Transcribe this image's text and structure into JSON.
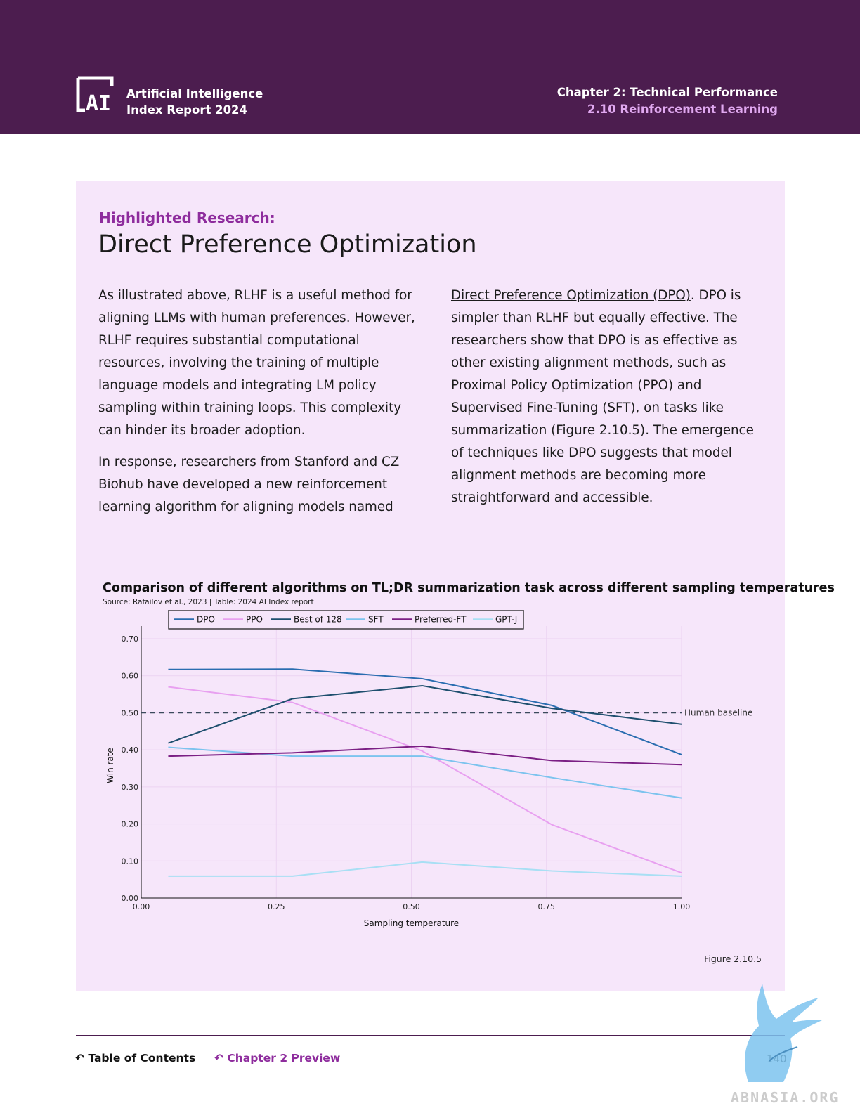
{
  "header": {
    "brand_line1": "Artificial Intelligence",
    "brand_line2": "Index Report 2024",
    "chapter": "Chapter 2: Technical Performance",
    "section": "2.10 Reinforcement Learning",
    "logo_text": "AI"
  },
  "article": {
    "label": "Highlighted Research:",
    "title": "Direct Preference Optimization",
    "col1_p1": "As illustrated above, RLHF is a useful method for aligning LLMs with human preferences. However, RLHF requires substantial computational resources, involving the training of multiple language models and integrating LM policy sampling within training loops. This complexity can hinder its broader adoption.",
    "col1_p2": "In response, researchers from Stanford and CZ Biohub have developed a new reinforcement learning algorithm for aligning models named",
    "col2_link": "Direct Preference Optimization (DPO)",
    "col2_text": ". DPO is simpler than RLHF but equally effective. The researchers show that DPO is as effective as other existing alignment methods, such as Proximal Policy Optimization (PPO) and Supervised Fine-Tuning (SFT), on tasks like summarization (Figure 2.10.5). The emergence of techniques like DPO suggests that model alignment methods are becoming more straightforward and accessible."
  },
  "chart_data": {
    "type": "line",
    "title": "Comparison of different algorithms on TL;DR summarization task across different sampling temperatures",
    "source": "Source: Rafailov et al., 2023 | Table: 2024 AI Index report",
    "xlabel": "Sampling temperature",
    "ylabel": "Win rate",
    "xlim": [
      0,
      1
    ],
    "ylim": [
      0,
      0.7
    ],
    "xticks": [
      "0.00",
      "0.25",
      "0.50",
      "0.75",
      "1.00"
    ],
    "yticks": [
      "0.00",
      "0.10",
      "0.20",
      "0.30",
      "0.40",
      "0.50",
      "0.60",
      "0.70"
    ],
    "legend_position": "top",
    "grid": true,
    "baseline": {
      "label": "Human baseline",
      "value": 0.5
    },
    "series": [
      {
        "name": "DPO",
        "color": "#2a6db0",
        "x": [
          0.05,
          0.28,
          0.52,
          0.76,
          1.0
        ],
        "y": [
          0.617,
          0.618,
          0.592,
          0.52,
          0.387
        ]
      },
      {
        "name": "PPO",
        "color": "#e8a0f0",
        "x": [
          0.05,
          0.28,
          0.52,
          0.76,
          1.0
        ],
        "y": [
          0.57,
          0.528,
          0.397,
          0.198,
          0.068
        ]
      },
      {
        "name": "Best of 128",
        "color": "#1e4f6e",
        "x": [
          0.05,
          0.28,
          0.52,
          0.76,
          1.0
        ],
        "y": [
          0.418,
          0.538,
          0.573,
          0.512,
          0.469
        ]
      },
      {
        "name": "SFT",
        "color": "#7cc3ee",
        "x": [
          0.05,
          0.28,
          0.52,
          0.76,
          1.0
        ],
        "y": [
          0.407,
          0.383,
          0.383,
          0.325,
          0.27
        ]
      },
      {
        "name": "Preferred-FT",
        "color": "#7b1f84",
        "x": [
          0.05,
          0.28,
          0.52,
          0.76,
          1.0
        ],
        "y": [
          0.383,
          0.392,
          0.41,
          0.371,
          0.36
        ]
      },
      {
        "name": "GPT-J",
        "color": "#a8dff4",
        "x": [
          0.05,
          0.28,
          0.52,
          0.76,
          1.0
        ],
        "y": [
          0.059,
          0.059,
          0.097,
          0.073,
          0.059
        ]
      }
    ]
  },
  "figure_label": "Figure 2.10.5",
  "footer": {
    "toc": "Table of Contents",
    "chapter_preview": "Chapter 2 Preview",
    "page": "140",
    "watermark": "ABNASIA.ORG"
  }
}
